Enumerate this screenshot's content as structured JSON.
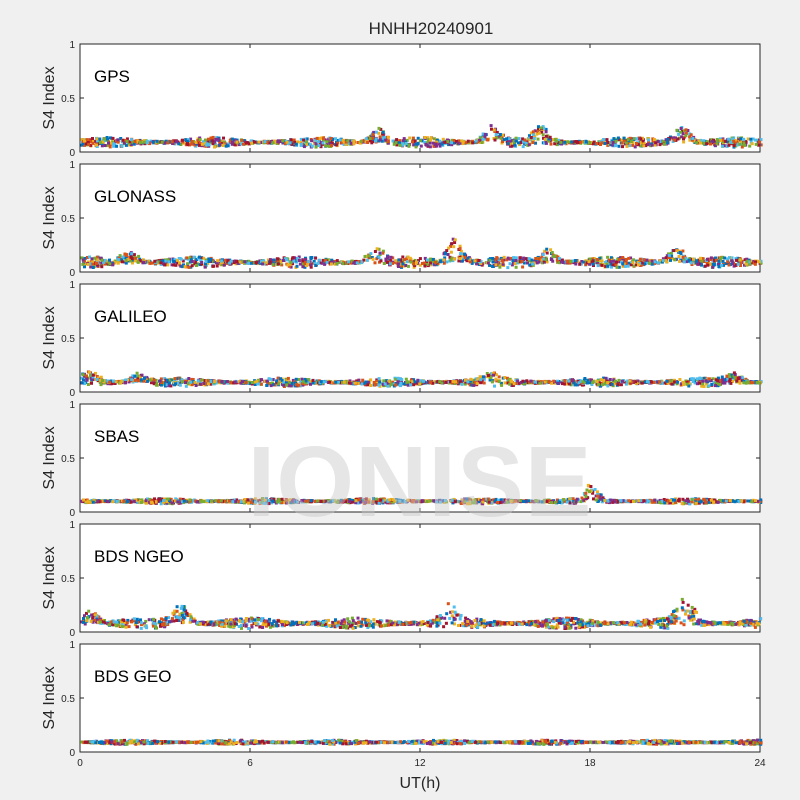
{
  "chart_data": {
    "type": "scatter",
    "title": "HNHH20240901",
    "xlabel": "UT(h)",
    "xlim": [
      0,
      24
    ],
    "xticks": [
      "0",
      "6",
      "12",
      "18",
      "24"
    ],
    "watermark": "IONISE",
    "series_colors": [
      "#0072BD",
      "#D95319",
      "#EDB120",
      "#7E2F8E",
      "#77AC30",
      "#4DBEEE",
      "#A2142F"
    ],
    "panels": [
      {
        "name": "GPS",
        "ylabel": "S4 Index",
        "ylim": [
          0,
          1
        ],
        "yticks": [
          "0",
          "0.5",
          "1"
        ],
        "baseline": 0.09,
        "spread": 0.045,
        "spikes": [
          [
            10.5,
            0.22
          ],
          [
            14.5,
            0.25
          ],
          [
            16.2,
            0.26
          ],
          [
            21.2,
            0.27
          ]
        ]
      },
      {
        "name": "GLONASS",
        "ylabel": "S4 Index",
        "ylim": [
          0,
          1
        ],
        "yticks": [
          "0",
          "0.5",
          "1"
        ],
        "baseline": 0.09,
        "spread": 0.05,
        "spikes": [
          [
            1.7,
            0.2
          ],
          [
            10.4,
            0.25
          ],
          [
            13.2,
            0.33
          ],
          [
            16.5,
            0.22
          ],
          [
            21.0,
            0.24
          ]
        ]
      },
      {
        "name": "GALILEO",
        "ylabel": "S4 Index",
        "ylim": [
          0,
          1
        ],
        "yticks": [
          "0",
          "0.5",
          "1"
        ],
        "baseline": 0.09,
        "spread": 0.04,
        "spikes": [
          [
            0.3,
            0.2
          ],
          [
            2.0,
            0.18
          ],
          [
            14.5,
            0.2
          ],
          [
            23.0,
            0.18
          ]
        ]
      },
      {
        "name": "SBAS",
        "ylabel": "S4 Index",
        "ylim": [
          0,
          1
        ],
        "yticks": [
          "0",
          "0.5",
          "1"
        ],
        "baseline": 0.1,
        "spread": 0.025,
        "spikes": [
          [
            18.0,
            0.26
          ]
        ]
      },
      {
        "name": "BDS NGEO",
        "ylabel": "S4 Index",
        "ylim": [
          0,
          1
        ],
        "yticks": [
          "0",
          "0.5",
          "1"
        ],
        "baseline": 0.08,
        "spread": 0.05,
        "spikes": [
          [
            0.3,
            0.2
          ],
          [
            3.5,
            0.28
          ],
          [
            13.0,
            0.28
          ],
          [
            21.3,
            0.34
          ]
        ]
      },
      {
        "name": "BDS GEO",
        "ylabel": "S4 Index",
        "ylim": [
          0,
          1
        ],
        "yticks": [
          "0",
          "0.5",
          "1"
        ],
        "baseline": 0.09,
        "spread": 0.02,
        "spikes": []
      }
    ]
  }
}
